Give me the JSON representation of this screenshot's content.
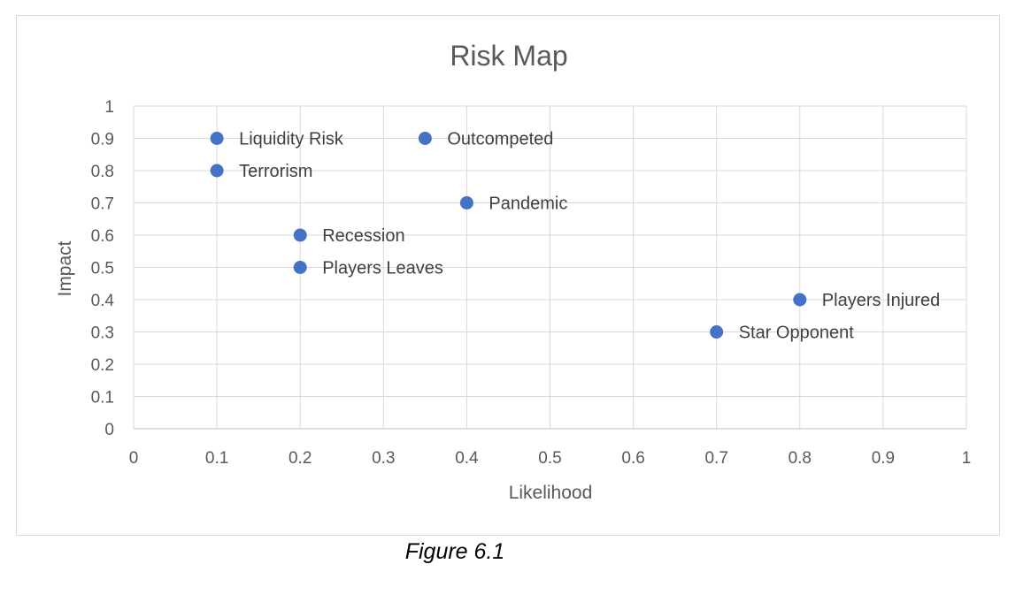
{
  "chart_data": {
    "type": "scatter",
    "title": "Risk Map",
    "xlabel": "Likelihood",
    "ylabel": "Impact",
    "xlim": [
      0,
      1
    ],
    "ylim": [
      0,
      1
    ],
    "x_ticks": [
      "0",
      "0.1",
      "0.2",
      "0.3",
      "0.4",
      "0.5",
      "0.6",
      "0.7",
      "0.8",
      "0.9",
      "1"
    ],
    "y_ticks": [
      "0",
      "0.1",
      "0.2",
      "0.3",
      "0.4",
      "0.5",
      "0.6",
      "0.7",
      "0.8",
      "0.9",
      "1"
    ],
    "grid": true,
    "legend": "none",
    "marker_color": "#4472C4",
    "points": [
      {
        "label": "Liquidity Risk",
        "x": 0.1,
        "y": 0.9
      },
      {
        "label": "Terrorism",
        "x": 0.1,
        "y": 0.8
      },
      {
        "label": "Outcompeted",
        "x": 0.35,
        "y": 0.9
      },
      {
        "label": "Pandemic",
        "x": 0.4,
        "y": 0.7
      },
      {
        "label": "Recession",
        "x": 0.2,
        "y": 0.6
      },
      {
        "label": "Players Leaves",
        "x": 0.2,
        "y": 0.5
      },
      {
        "label": "Players Injured",
        "x": 0.8,
        "y": 0.4
      },
      {
        "label": "Star Opponent",
        "x": 0.7,
        "y": 0.3
      }
    ]
  },
  "caption": "Figure 6.1"
}
